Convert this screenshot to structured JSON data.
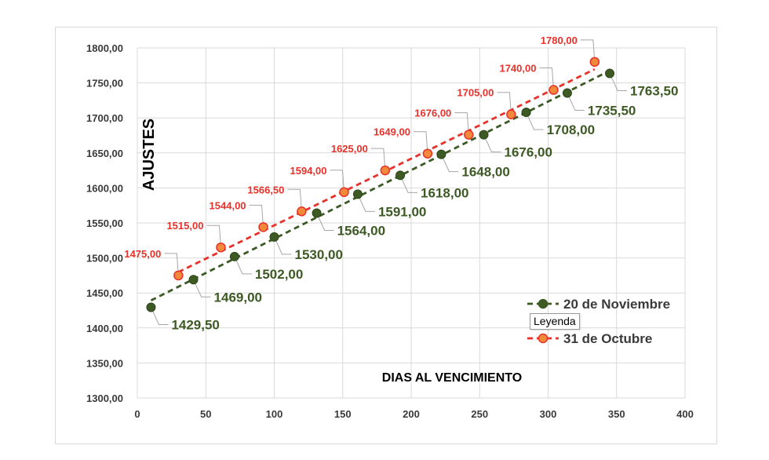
{
  "chart_data": {
    "type": "scatter",
    "ylabel": "AJUSTES",
    "xlabel": "DIAS AL VENCIMIENTO",
    "xlim": [
      0,
      400
    ],
    "ylim": [
      1300,
      1800
    ],
    "x_ticks": [
      "0",
      "50",
      "100",
      "150",
      "200",
      "250",
      "300",
      "350",
      "400"
    ],
    "y_ticks": [
      "1300,00",
      "1350,00",
      "1400,00",
      "1450,00",
      "1500,00",
      "1550,00",
      "1600,00",
      "1650,00",
      "1700,00",
      "1750,00",
      "1800,00"
    ],
    "grid": true,
    "legend_position": "right",
    "series": [
      {
        "name": "20 de Noviembre",
        "color": "#3d5a24",
        "line_style": "dashed-trendline",
        "points": [
          {
            "x": 10,
            "y": 1429.5,
            "label": "1429,50"
          },
          {
            "x": 41,
            "y": 1469.0,
            "label": "1469,00"
          },
          {
            "x": 71,
            "y": 1502.0,
            "label": "1502,00"
          },
          {
            "x": 100,
            "y": 1530.0,
            "label": "1530,00"
          },
          {
            "x": 131,
            "y": 1564.0,
            "label": "1564,00"
          },
          {
            "x": 161,
            "y": 1591.0,
            "label": "1591,00"
          },
          {
            "x": 192,
            "y": 1618.0,
            "label": "1618,00"
          },
          {
            "x": 222,
            "y": 1648.0,
            "label": "1648,00"
          },
          {
            "x": 253,
            "y": 1676.0,
            "label": "1676,00"
          },
          {
            "x": 284,
            "y": 1708.0,
            "label": "1708,00"
          },
          {
            "x": 314,
            "y": 1735.5,
            "label": "1735,50"
          },
          {
            "x": 345,
            "y": 1763.5,
            "label": "1763,50"
          }
        ]
      },
      {
        "name": "31 de Octubre",
        "color": "#e8312a",
        "line_style": "dashed-trendline",
        "points": [
          {
            "x": 30,
            "y": 1475.0,
            "label": "1475,00"
          },
          {
            "x": 61,
            "y": 1515.0,
            "label": "1515,00"
          },
          {
            "x": 92,
            "y": 1544.0,
            "label": "1544,00"
          },
          {
            "x": 120,
            "y": 1566.5,
            "label": "1566,50"
          },
          {
            "x": 151,
            "y": 1594.0,
            "label": "1594,00"
          },
          {
            "x": 181,
            "y": 1625.0,
            "label": "1625,00"
          },
          {
            "x": 212,
            "y": 1649.0,
            "label": "1649,00"
          },
          {
            "x": 242,
            "y": 1676.0,
            "label": "1676,00"
          },
          {
            "x": 273,
            "y": 1705.0,
            "label": "1705,00"
          },
          {
            "x": 304,
            "y": 1740.0,
            "label": "1740,00"
          },
          {
            "x": 334,
            "y": 1780.0,
            "label": "1780,00"
          }
        ]
      }
    ]
  },
  "tooltip": {
    "text": "Leyenda"
  },
  "colors": {
    "grid": "#d9d9d9",
    "leader": "#a6a6a6",
    "red_marker_fill": "#f08a3a"
  }
}
